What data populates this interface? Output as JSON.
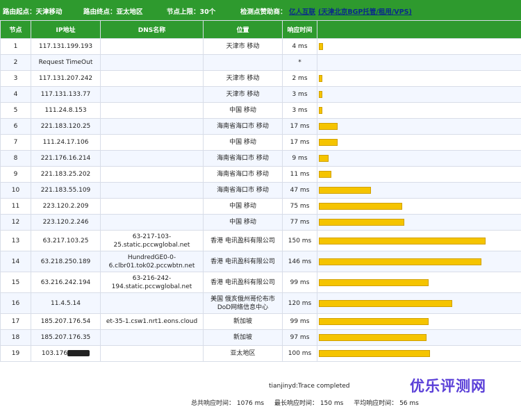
{
  "header": {
    "origin": "路由起点：天津移动",
    "dest": "路由终点：亚太地区",
    "hops": "节点上限：30个",
    "sponsor_label": "检测点赞助商：",
    "sponsor_name": "亿人互联",
    "sponsor_detail": "(天津北京BGP托管/租用/VPS)"
  },
  "columns": [
    "节点",
    "IP地址",
    "DNS名称",
    "位置",
    "响应时间",
    ""
  ],
  "rows": [
    {
      "n": "1",
      "ip": "117.131.199.193",
      "dns": "",
      "loc": "天津市 移动",
      "time": "4 ms",
      "ms": 4
    },
    {
      "n": "2",
      "ip": "Request TimeOut",
      "dns": "",
      "loc": "",
      "time": "*",
      "ms": 0
    },
    {
      "n": "3",
      "ip": "117.131.207.242",
      "dns": "",
      "loc": "天津市 移动",
      "time": "2 ms",
      "ms": 2
    },
    {
      "n": "4",
      "ip": "117.131.133.77",
      "dns": "",
      "loc": "天津市 移动",
      "time": "3 ms",
      "ms": 3
    },
    {
      "n": "5",
      "ip": "111.24.8.153",
      "dns": "",
      "loc": "中国 移动",
      "time": "3 ms",
      "ms": 3
    },
    {
      "n": "6",
      "ip": "221.183.120.25",
      "dns": "",
      "loc": "海南省海口市 移动",
      "time": "17 ms",
      "ms": 17
    },
    {
      "n": "7",
      "ip": "111.24.17.106",
      "dns": "",
      "loc": "中国 移动",
      "time": "17 ms",
      "ms": 17
    },
    {
      "n": "8",
      "ip": "221.176.16.214",
      "dns": "",
      "loc": "海南省海口市 移动",
      "time": "9 ms",
      "ms": 9
    },
    {
      "n": "9",
      "ip": "221.183.25.202",
      "dns": "",
      "loc": "海南省海口市 移动",
      "time": "11 ms",
      "ms": 11
    },
    {
      "n": "10",
      "ip": "221.183.55.109",
      "dns": "",
      "loc": "海南省海口市 移动",
      "time": "47 ms",
      "ms": 47
    },
    {
      "n": "11",
      "ip": "223.120.2.209",
      "dns": "",
      "loc": "中国 移动",
      "time": "75 ms",
      "ms": 75
    },
    {
      "n": "12",
      "ip": "223.120.2.246",
      "dns": "",
      "loc": "中国 移动",
      "time": "77 ms",
      "ms": 77
    },
    {
      "n": "13",
      "ip": "63.217.103.25",
      "dns": "63-217-103-25.static.pccwglobal.net",
      "loc": "香港 电讯盈科有限公司",
      "time": "150 ms",
      "ms": 150,
      "tall": true
    },
    {
      "n": "14",
      "ip": "63.218.250.189",
      "dns": "HundredGE0-0-6.clbr01.tok02.pccwbtn.net",
      "loc": "香港 电讯盈科有限公司",
      "time": "146 ms",
      "ms": 146,
      "tall": true
    },
    {
      "n": "15",
      "ip": "63.216.242.194",
      "dns": "63-216-242-194.static.pccwglobal.net",
      "loc": "香港 电讯盈科有限公司",
      "time": "99 ms",
      "ms": 99,
      "tall": true
    },
    {
      "n": "16",
      "ip": "11.4.5.14",
      "dns": "",
      "loc": "美国 俄亥俄州哥伦布市DoD网络信息中心",
      "time": "120 ms",
      "ms": 120,
      "tall": true
    },
    {
      "n": "17",
      "ip": "185.207.176.54",
      "dns": "et-35-1.csw1.nrt1.eons.cloud",
      "loc": "新加坡",
      "time": "99 ms",
      "ms": 99
    },
    {
      "n": "18",
      "ip": "185.207.176.35",
      "dns": "",
      "loc": "新加坡",
      "time": "97 ms",
      "ms": 97
    },
    {
      "n": "19",
      "ip": "103.176",
      "dns": "",
      "loc": "亚太地区",
      "time": "100 ms",
      "ms": 100,
      "redacted": true
    }
  ],
  "footer": {
    "status": "tianjinyd:Trace completed",
    "total": "总共响应时间： 1076 ms",
    "max": "最长响应时间： 150 ms",
    "avg": "平均响应时间： 56 ms"
  },
  "watermark": "优乐评测网"
}
